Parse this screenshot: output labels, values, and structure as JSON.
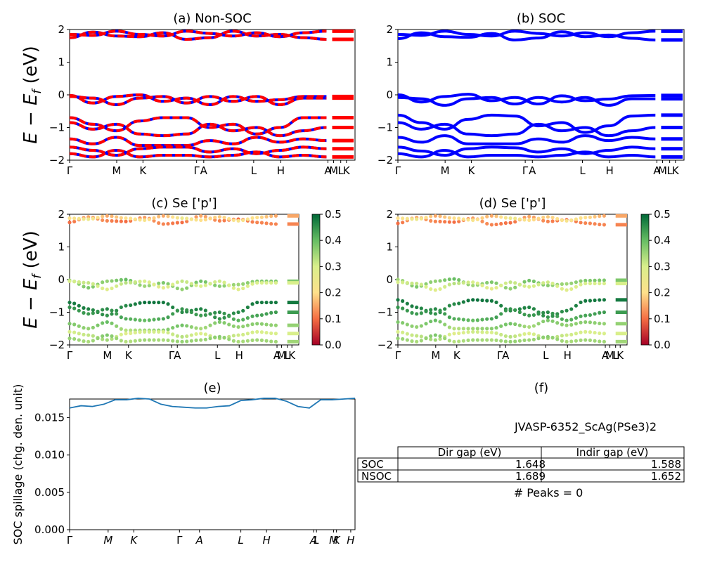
{
  "figure": {
    "ylabel_top": "E − E",
    "ylabel_sub": "f",
    "ylabel_unit": " (eV)",
    "spillage_ylabel": "SOC spillage (chg. den. unit)"
  },
  "chart_data": [
    {
      "id": "a",
      "type": "line",
      "title": "(a) Non-SOC",
      "ylim": [
        -2,
        2
      ],
      "yticks": [
        "2",
        "1",
        "0",
        "−1",
        "−2"
      ],
      "xticks": [
        "Γ",
        "M",
        "K",
        "Γ",
        "A",
        "L",
        "H",
        "A",
        "M",
        "L",
        "K"
      ],
      "series_colors": [
        "#ff0000",
        "#0000ff"
      ],
      "series": [
        {
          "values": [
            1.75,
            1.92,
            1.8,
            1.78,
            1.9,
            1.7,
            1.75,
            1.95,
            1.8,
            1.85,
            1.75,
            1.7
          ]
        },
        {
          "values": [
            1.85,
            1.82,
            1.95,
            1.85,
            1.8,
            1.95,
            1.88,
            1.8,
            1.9,
            1.78,
            1.9,
            1.95
          ]
        },
        {
          "values": [
            -0.02,
            -0.25,
            -0.05,
            0.0,
            -0.2,
            -0.1,
            -0.3,
            -0.05,
            -0.2,
            -0.15,
            -0.05,
            -0.05
          ]
        },
        {
          "values": [
            -0.05,
            -0.1,
            -0.3,
            -0.1,
            -0.05,
            -0.25,
            -0.05,
            -0.2,
            -0.05,
            -0.3,
            -0.1,
            -0.1
          ]
        },
        {
          "values": [
            -0.7,
            -0.9,
            -1.1,
            -0.8,
            -0.7,
            -0.7,
            -1.0,
            -0.9,
            -1.2,
            -1.0,
            -0.7,
            -0.7
          ]
        },
        {
          "values": [
            -0.85,
            -1.05,
            -0.9,
            -1.2,
            -1.25,
            -1.2,
            -0.9,
            -1.1,
            -1.0,
            -1.25,
            -1.1,
            -1.0
          ]
        },
        {
          "values": [
            -1.35,
            -1.5,
            -1.3,
            -1.55,
            -1.55,
            -1.55,
            -1.4,
            -1.5,
            -1.3,
            -1.45,
            -1.35,
            -1.4
          ]
        },
        {
          "values": [
            -1.6,
            -1.7,
            -1.85,
            -1.65,
            -1.6,
            -1.6,
            -1.75,
            -1.65,
            -1.8,
            -1.7,
            -1.6,
            -1.65
          ]
        },
        {
          "values": [
            -1.8,
            -1.9,
            -1.7,
            -1.9,
            -1.85,
            -1.85,
            -1.9,
            -1.85,
            -1.75,
            -1.9,
            -1.85,
            -1.9
          ]
        }
      ]
    },
    {
      "id": "b",
      "type": "line",
      "title": "(b) SOC",
      "ylim": [
        -2,
        2
      ],
      "yticks": [
        "2",
        "1",
        "0",
        "−1",
        "−2"
      ],
      "xticks": [
        "Γ",
        "M",
        "K",
        "Γ",
        "A",
        "L",
        "H",
        "A",
        "M",
        "L",
        "K"
      ],
      "series_colors": [
        "#0000ff"
      ],
      "series": [
        {
          "values": [
            1.72,
            1.9,
            1.78,
            1.76,
            1.88,
            1.68,
            1.74,
            1.93,
            1.78,
            1.83,
            1.73,
            1.68
          ]
        },
        {
          "values": [
            1.85,
            1.82,
            1.95,
            1.85,
            1.8,
            1.95,
            1.88,
            1.8,
            1.9,
            1.78,
            1.9,
            1.95
          ]
        },
        {
          "values": [
            0.0,
            -0.22,
            -0.05,
            0.02,
            -0.18,
            -0.08,
            -0.28,
            -0.03,
            -0.18,
            -0.13,
            -0.03,
            -0.02
          ]
        },
        {
          "values": [
            -0.08,
            -0.12,
            -0.32,
            -0.12,
            -0.08,
            -0.28,
            -0.08,
            -0.22,
            -0.08,
            -0.32,
            -0.12,
            -0.12
          ]
        },
        {
          "values": [
            -0.62,
            -0.85,
            -1.05,
            -0.75,
            -0.62,
            -0.65,
            -0.95,
            -0.85,
            -1.15,
            -0.95,
            -0.65,
            -0.62
          ]
        },
        {
          "values": [
            -0.85,
            -1.05,
            -0.9,
            -1.2,
            -1.25,
            -1.2,
            -0.9,
            -1.1,
            -1.0,
            -1.25,
            -1.1,
            -1.0
          ]
        },
        {
          "values": [
            -1.3,
            -1.45,
            -1.25,
            -1.5,
            -1.5,
            -1.5,
            -1.35,
            -1.45,
            -1.25,
            -1.4,
            -1.3,
            -1.35
          ]
        },
        {
          "values": [
            -1.6,
            -1.72,
            -1.85,
            -1.65,
            -1.6,
            -1.62,
            -1.75,
            -1.65,
            -1.8,
            -1.7,
            -1.6,
            -1.65
          ]
        },
        {
          "values": [
            -1.8,
            -1.9,
            -1.7,
            -1.9,
            -1.85,
            -1.85,
            -1.9,
            -1.85,
            -1.75,
            -1.9,
            -1.85,
            -1.9
          ]
        }
      ]
    },
    {
      "id": "c",
      "type": "scatter",
      "title": "(c)  Se ['p']",
      "ylim": [
        -2,
        2
      ],
      "yticks": [
        "2",
        "1",
        "0",
        "−1",
        "−2"
      ],
      "xticks": [
        "Γ",
        "M",
        "K",
        "Γ",
        "A",
        "L",
        "H",
        "A",
        "M",
        "L",
        "K"
      ],
      "colorbar": {
        "min": 0.0,
        "max": 0.5,
        "ticks": [
          "0.5",
          "0.4",
          "0.3",
          "0.2",
          "0.1",
          "0.0"
        ],
        "colors": [
          "#a50026",
          "#f46d43",
          "#fee08b",
          "#d9ef8b",
          "#66bd63",
          "#006837"
        ]
      },
      "bands": [
        {
          "values": [
            1.75,
            1.92,
            1.8,
            1.78,
            1.9,
            1.7,
            1.75,
            1.95,
            1.8,
            1.85,
            1.75,
            1.7
          ],
          "weights": [
            0.1,
            0.15,
            0.12,
            0.1,
            0.14,
            0.12,
            0.1,
            0.15,
            0.12,
            0.1,
            0.12,
            0.12
          ]
        },
        {
          "values": [
            1.88,
            1.85,
            1.95,
            1.88,
            1.82,
            1.95,
            1.88,
            1.82,
            1.92,
            1.8,
            1.9,
            1.95
          ],
          "weights": [
            0.2,
            0.25,
            0.15,
            0.2,
            0.22,
            0.15,
            0.25,
            0.2,
            0.18,
            0.22,
            0.2,
            0.15
          ]
        },
        {
          "values": [
            -0.02,
            -0.25,
            -0.05,
            0.0,
            -0.2,
            -0.1,
            -0.3,
            -0.05,
            -0.2,
            -0.15,
            -0.05,
            -0.05
          ],
          "weights": [
            0.35,
            0.38,
            0.36,
            0.4,
            0.35,
            0.38,
            0.36,
            0.39,
            0.37,
            0.35,
            0.38,
            0.38
          ]
        },
        {
          "values": [
            -0.05,
            -0.1,
            -0.3,
            -0.1,
            -0.05,
            -0.25,
            -0.05,
            -0.2,
            -0.05,
            -0.3,
            -0.1,
            -0.1
          ],
          "weights": [
            0.3,
            0.32,
            0.28,
            0.33,
            0.3,
            0.27,
            0.32,
            0.3,
            0.31,
            0.28,
            0.3,
            0.3
          ]
        },
        {
          "values": [
            -0.7,
            -0.9,
            -1.1,
            -0.8,
            -0.7,
            -0.7,
            -1.0,
            -0.9,
            -1.2,
            -1.0,
            -0.7,
            -0.7
          ],
          "weights": [
            0.48,
            0.47,
            0.45,
            0.46,
            0.49,
            0.48,
            0.46,
            0.47,
            0.45,
            0.46,
            0.48,
            0.48
          ]
        },
        {
          "values": [
            -0.85,
            -1.05,
            -0.9,
            -1.2,
            -1.25,
            -1.2,
            -0.9,
            -1.1,
            -1.0,
            -1.25,
            -1.1,
            -1.0
          ],
          "weights": [
            0.45,
            0.44,
            0.46,
            0.42,
            0.4,
            0.43,
            0.45,
            0.44,
            0.46,
            0.41,
            0.43,
            0.44
          ]
        },
        {
          "values": [
            -1.35,
            -1.5,
            -1.3,
            -1.55,
            -1.55,
            -1.55,
            -1.4,
            -1.5,
            -1.3,
            -1.45,
            -1.35,
            -1.4
          ],
          "weights": [
            0.38,
            0.36,
            0.4,
            0.33,
            0.35,
            0.37,
            0.39,
            0.34,
            0.38,
            0.36,
            0.37,
            0.36
          ]
        },
        {
          "values": [
            -1.6,
            -1.7,
            -1.85,
            -1.65,
            -1.6,
            -1.6,
            -1.75,
            -1.65,
            -1.8,
            -1.7,
            -1.6,
            -1.65
          ],
          "weights": [
            0.3,
            0.32,
            0.35,
            0.28,
            0.31,
            0.3,
            0.33,
            0.29,
            0.34,
            0.31,
            0.3,
            0.3
          ]
        },
        {
          "values": [
            -1.8,
            -1.9,
            -1.7,
            -1.9,
            -1.85,
            -1.85,
            -1.9,
            -1.85,
            -1.75,
            -1.9,
            -1.85,
            -1.9
          ],
          "weights": [
            0.36,
            0.34,
            0.38,
            0.33,
            0.35,
            0.34,
            0.36,
            0.35,
            0.37,
            0.34,
            0.35,
            0.35
          ]
        }
      ]
    },
    {
      "id": "d",
      "type": "scatter",
      "title": "(d) Se ['p']",
      "ylim": [
        -2,
        2
      ],
      "yticks": [
        "2",
        "1",
        "0",
        "−1",
        "−2"
      ],
      "xticks": [
        "Γ",
        "M",
        "K",
        "Γ",
        "A",
        "L",
        "H",
        "A",
        "M",
        "L",
        "K"
      ],
      "colorbar": {
        "min": 0.0,
        "max": 0.5,
        "ticks": [
          "0.5",
          "0.4",
          "0.3",
          "0.2",
          "0.1",
          "0.0"
        ],
        "colors": [
          "#a50026",
          "#f46d43",
          "#fee08b",
          "#d9ef8b",
          "#66bd63",
          "#006837"
        ]
      },
      "bands": [
        {
          "values": [
            1.72,
            1.9,
            1.78,
            1.76,
            1.88,
            1.68,
            1.74,
            1.93,
            1.78,
            1.83,
            1.73,
            1.68
          ],
          "weights": [
            0.1,
            0.15,
            0.12,
            0.1,
            0.14,
            0.12,
            0.1,
            0.15,
            0.12,
            0.1,
            0.12,
            0.12
          ]
        },
        {
          "values": [
            1.88,
            1.85,
            1.95,
            1.88,
            1.82,
            1.95,
            1.88,
            1.82,
            1.92,
            1.8,
            1.9,
            1.95
          ],
          "weights": [
            0.2,
            0.25,
            0.15,
            0.2,
            0.22,
            0.15,
            0.25,
            0.2,
            0.18,
            0.22,
            0.2,
            0.15
          ]
        },
        {
          "values": [
            0.0,
            -0.22,
            -0.05,
            0.02,
            -0.18,
            -0.08,
            -0.28,
            -0.03,
            -0.18,
            -0.13,
            -0.03,
            -0.02
          ],
          "weights": [
            0.35,
            0.38,
            0.36,
            0.4,
            0.35,
            0.38,
            0.36,
            0.39,
            0.37,
            0.35,
            0.38,
            0.38
          ]
        },
        {
          "values": [
            -0.08,
            -0.12,
            -0.32,
            -0.12,
            -0.08,
            -0.28,
            -0.08,
            -0.22,
            -0.08,
            -0.32,
            -0.12,
            -0.12
          ],
          "weights": [
            0.3,
            0.32,
            0.28,
            0.33,
            0.3,
            0.27,
            0.32,
            0.3,
            0.31,
            0.28,
            0.3,
            0.3
          ]
        },
        {
          "values": [
            -0.62,
            -0.85,
            -1.05,
            -0.75,
            -0.62,
            -0.65,
            -0.95,
            -0.85,
            -1.15,
            -0.95,
            -0.65,
            -0.62
          ],
          "weights": [
            0.48,
            0.47,
            0.45,
            0.46,
            0.49,
            0.48,
            0.46,
            0.47,
            0.45,
            0.46,
            0.48,
            0.48
          ]
        },
        {
          "values": [
            -0.85,
            -1.05,
            -0.9,
            -1.2,
            -1.25,
            -1.2,
            -0.9,
            -1.1,
            -1.0,
            -1.25,
            -1.1,
            -1.0
          ],
          "weights": [
            0.45,
            0.44,
            0.46,
            0.42,
            0.4,
            0.43,
            0.45,
            0.44,
            0.46,
            0.41,
            0.43,
            0.44
          ]
        },
        {
          "values": [
            -1.3,
            -1.45,
            -1.25,
            -1.5,
            -1.5,
            -1.5,
            -1.35,
            -1.45,
            -1.25,
            -1.4,
            -1.3,
            -1.35
          ],
          "weights": [
            0.38,
            0.36,
            0.4,
            0.33,
            0.35,
            0.37,
            0.39,
            0.34,
            0.38,
            0.36,
            0.37,
            0.36
          ]
        },
        {
          "values": [
            -1.6,
            -1.72,
            -1.85,
            -1.65,
            -1.6,
            -1.62,
            -1.75,
            -1.65,
            -1.8,
            -1.7,
            -1.6,
            -1.65
          ],
          "weights": [
            0.3,
            0.32,
            0.35,
            0.28,
            0.31,
            0.3,
            0.33,
            0.29,
            0.34,
            0.31,
            0.3,
            0.3
          ]
        },
        {
          "values": [
            -1.8,
            -1.9,
            -1.7,
            -1.9,
            -1.85,
            -1.85,
            -1.9,
            -1.85,
            -1.75,
            -1.9,
            -1.85,
            -1.9
          ],
          "weights": [
            0.36,
            0.34,
            0.38,
            0.33,
            0.35,
            0.34,
            0.36,
            0.35,
            0.37,
            0.34,
            0.35,
            0.35
          ]
        }
      ]
    },
    {
      "id": "e",
      "type": "line",
      "title": "(e)",
      "ylabel": "SOC spillage (chg. den. unit)",
      "ylim": [
        0,
        0.0175
      ],
      "yticks": [
        0.0,
        0.005,
        0.01,
        0.015
      ],
      "ytick_labels": [
        "0.000",
        "0.005",
        "0.010",
        "0.015"
      ],
      "xticks": [
        "Γ",
        "M",
        "K",
        "Γ",
        "A",
        "L",
        "H",
        "A",
        "L",
        "M",
        "K",
        "H"
      ],
      "line_color": "#1f77b4",
      "values": [
        0.0163,
        0.0166,
        0.0165,
        0.0168,
        0.0174,
        0.0174,
        0.0176,
        0.0175,
        0.0168,
        0.0165,
        0.0164,
        0.0163,
        0.0163,
        0.0165,
        0.0166,
        0.0173,
        0.0174,
        0.0176,
        0.0176,
        0.0172,
        0.0165,
        0.0163,
        0.0174,
        0.0174,
        0.0175,
        0.0176
      ]
    },
    {
      "id": "f",
      "type": "table",
      "title": "(f)",
      "subtitle": "JVASP-6352_ScAg(PSe3)2",
      "columns": [
        "",
        "Dir gap (eV)",
        "Indir gap (eV)"
      ],
      "rows": [
        [
          "SOC",
          "1.648",
          "1.588"
        ],
        [
          "NSOC",
          "1.689",
          "1.652"
        ]
      ],
      "note": "# Peaks = 0"
    }
  ]
}
